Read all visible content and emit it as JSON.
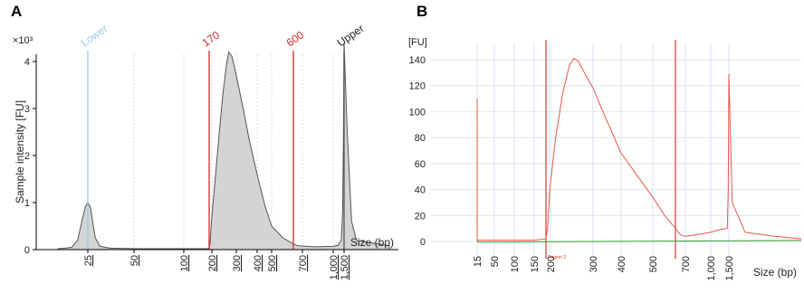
{
  "chart_data": [
    {
      "panel": "A",
      "type": "area",
      "ylabel": "Sample intensity [FU]",
      "y_multiplier": "×10³",
      "xlabel": "Size (bp)",
      "x_scale": "log",
      "xlim": [
        15,
        1900
      ],
      "ylim": [
        0,
        4.4
      ],
      "y_ticks": [
        0,
        1,
        2,
        3,
        4
      ],
      "x_ticks": [
        {
          "value": 25,
          "label": "25"
        },
        {
          "value": 50,
          "label": "50"
        },
        {
          "value": 100,
          "label": "100"
        },
        {
          "value": 200,
          "label": "200"
        },
        {
          "value": 300,
          "label": "300"
        },
        {
          "value": 400,
          "label": "400"
        },
        {
          "value": 500,
          "label": "500"
        },
        {
          "value": 700,
          "label": "700"
        },
        {
          "value": 1000,
          "label": "1,000"
        },
        {
          "value": 1500,
          "label": "1,500"
        }
      ],
      "markers": [
        {
          "label": "Lower",
          "x": 25,
          "color": "#9ecae1"
        },
        {
          "label": "170",
          "x": 170,
          "color": "#d62728"
        },
        {
          "label": "600",
          "x": 600,
          "color": "#d62728"
        },
        {
          "label": "Upper",
          "x": 1500,
          "color": "#555555"
        }
      ],
      "series": [
        {
          "points": [
            [
              15,
              0.02
            ],
            [
              17,
              0.03
            ],
            [
              19,
              0.05
            ],
            [
              21,
              0.2
            ],
            [
              23,
              0.7
            ],
            [
              24,
              0.92
            ],
            [
              25,
              1.0
            ],
            [
              26,
              0.9
            ],
            [
              27,
              0.55
            ],
            [
              28,
              0.25
            ],
            [
              30,
              0.07
            ],
            [
              35,
              0.03
            ],
            [
              50,
              0.02
            ],
            [
              100,
              0.02
            ],
            [
              165,
              0.02
            ],
            [
              170,
              0.03
            ],
            [
              180,
              0.15
            ],
            [
              195,
              0.6
            ],
            [
              210,
              1.4
            ],
            [
              225,
              2.4
            ],
            [
              240,
              3.3
            ],
            [
              255,
              3.95
            ],
            [
              265,
              4.2
            ],
            [
              280,
              4.1
            ],
            [
              300,
              3.7
            ],
            [
              330,
              3.0
            ],
            [
              360,
              2.3
            ],
            [
              400,
              1.6
            ],
            [
              450,
              0.95
            ],
            [
              500,
              0.5
            ],
            [
              550,
              0.25
            ],
            [
              600,
              0.12
            ],
            [
              650,
              0.08
            ],
            [
              800,
              0.06
            ],
            [
              1000,
              0.07
            ],
            [
              1200,
              0.09
            ],
            [
              1350,
              0.2
            ],
            [
              1420,
              0.8
            ],
            [
              1470,
              2.5
            ],
            [
              1500,
              4.4
            ],
            [
              1525,
              2.5
            ],
            [
              1560,
              0.6
            ],
            [
              1600,
              0.2
            ],
            [
              1700,
              0.15
            ],
            [
              1800,
              0.12
            ],
            [
              1900,
              0.08
            ]
          ]
        }
      ]
    },
    {
      "panel": "B",
      "type": "line",
      "ylabel": "[FU]",
      "xlabel": "Size (bp)",
      "ylim": [
        -8,
        148
      ],
      "y_ticks": [
        0,
        20,
        40,
        60,
        80,
        100,
        120,
        140
      ],
      "x_ticks": [
        {
          "value": 15,
          "label": "15"
        },
        {
          "value": 50,
          "label": "50"
        },
        {
          "value": 100,
          "label": "100"
        },
        {
          "value": 150,
          "label": "150"
        },
        {
          "value": 200,
          "label": "200"
        },
        {
          "value": 300,
          "label": "300"
        },
        {
          "value": 400,
          "label": "400"
        },
        {
          "value": 500,
          "label": "500"
        },
        {
          "value": 700,
          "label": "700"
        },
        {
          "value": 1000,
          "label": "1,000"
        },
        {
          "value": 1500,
          "label": "1,500"
        }
      ],
      "region_label": "Region 2",
      "region": [
        170,
        600
      ],
      "series": [
        {
          "color": "#e8584a",
          "points": [
            [
              15,
              0
            ],
            [
              15,
              2
            ],
            [
              15,
              110
            ],
            [
              15,
              20
            ],
            [
              15,
              1
            ],
            [
              50,
              1
            ],
            [
              100,
              1
            ],
            [
              150,
              1
            ],
            [
              170,
              2
            ],
            [
              180,
              10
            ],
            [
              195,
              40
            ],
            [
              210,
              80
            ],
            [
              225,
              115
            ],
            [
              240,
              136
            ],
            [
              250,
              141
            ],
            [
              260,
              139
            ],
            [
              280,
              128
            ],
            [
              300,
              118
            ],
            [
              330,
              101
            ],
            [
              360,
              86
            ],
            [
              400,
              68
            ],
            [
              450,
              50
            ],
            [
              500,
              34
            ],
            [
              550,
              20
            ],
            [
              600,
              10
            ],
            [
              650,
              5
            ],
            [
              700,
              4
            ],
            [
              800,
              5
            ],
            [
              1000,
              7
            ],
            [
              1200,
              9
            ],
            [
              1450,
              10
            ],
            [
              1480,
              40
            ],
            [
              1500,
              129
            ],
            [
              1520,
              30
            ],
            [
              1600,
              7
            ],
            [
              1800,
              4
            ],
            [
              2000,
              2
            ]
          ]
        },
        {
          "color": "#2ca02c",
          "points": [
            [
              15,
              -0.5
            ],
            [
              2000,
              0.8
            ]
          ]
        }
      ]
    }
  ]
}
